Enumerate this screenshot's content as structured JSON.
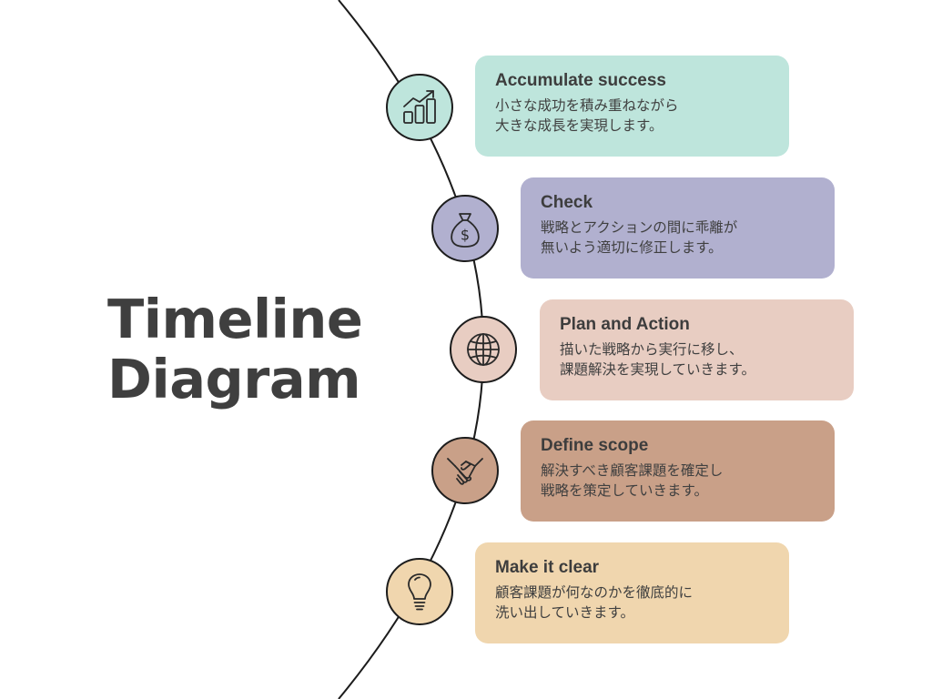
{
  "title": {
    "line1": "Timeline",
    "line2": "Diagram"
  },
  "steps": [
    {
      "title": "Accumulate success",
      "line1": "小さな成功を積み重ねながら",
      "line2": "大きな成長を実現します。",
      "icon": "bar-chart-growth-icon",
      "color": "#bee5dc"
    },
    {
      "title": "Check",
      "line1": "戦略とアクションの間に乖離が",
      "line2": "無いよう適切に修正します。",
      "icon": "money-bag-icon",
      "color": "#b1b0cf"
    },
    {
      "title": "Plan and Action",
      "line1": "描いた戦略から実行に移し、",
      "line2": "課題解決を実現していきます。",
      "icon": "globe-icon",
      "color": "#e8cdc2"
    },
    {
      "title": "Define scope",
      "line1": "解決すべき顧客課題を確定し",
      "line2": "戦略を策定していきます。",
      "icon": "handshake-icon",
      "color": "#c9a088"
    },
    {
      "title": "Make it clear",
      "line1": "顧客課題が何なのかを徹底的に",
      "line2": "洗い出していきます。",
      "icon": "light-bulb-icon",
      "color": "#f0d6ae"
    }
  ]
}
